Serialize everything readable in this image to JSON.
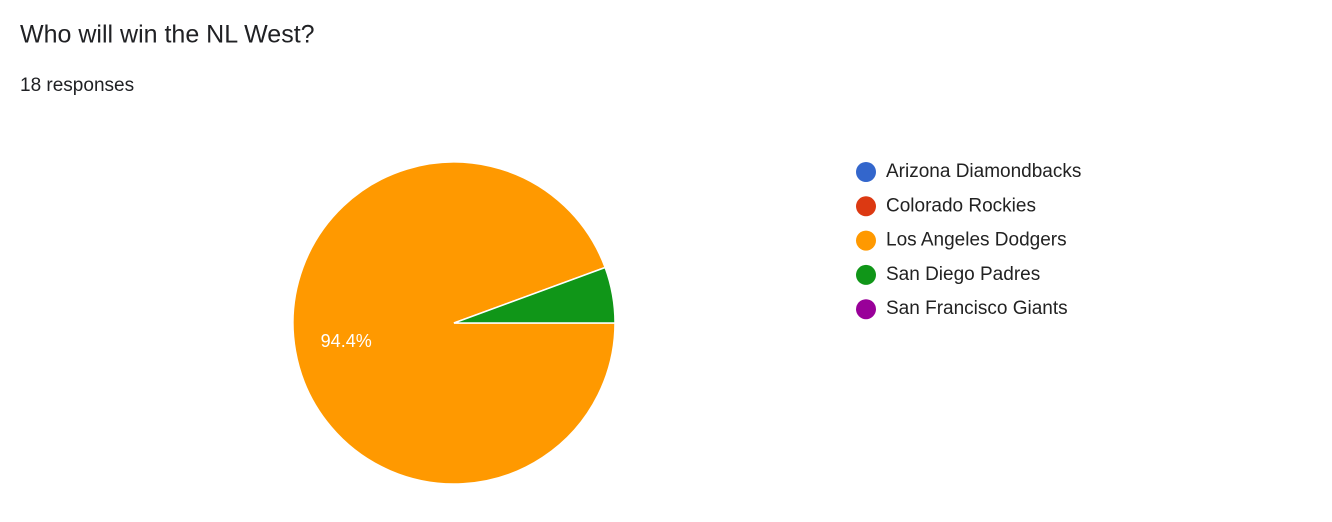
{
  "chart_data": {
    "type": "pie",
    "title": "Who will win the NL West?",
    "subtitle": "18 responses",
    "categories": [
      "Arizona Diamondbacks",
      "Colorado Rockies",
      "Los Angeles Dodgers",
      "San Diego Padres",
      "San Francisco Giants"
    ],
    "values": [
      0,
      0,
      94.4,
      5.6,
      0
    ],
    "value_labels": [
      null,
      null,
      "94.4%",
      null,
      null
    ],
    "colors": [
      "#3366cc",
      "#dc3912",
      "#ff9900",
      "#109618",
      "#990099"
    ]
  }
}
